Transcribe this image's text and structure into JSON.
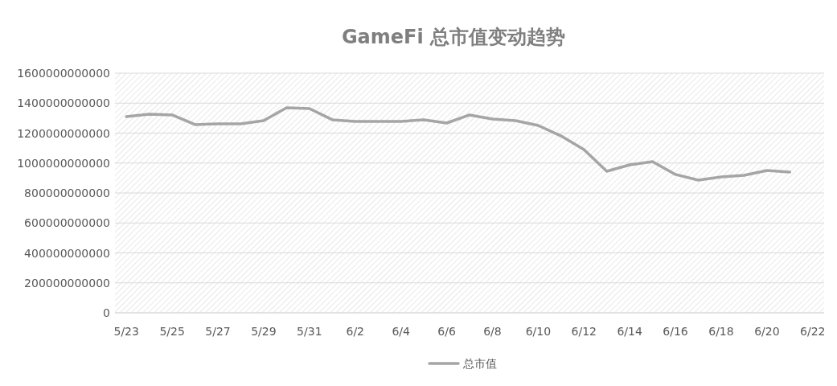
{
  "chart_data": {
    "type": "line",
    "title": "GameFi 总市值变动趋势",
    "categories": [
      "5/23",
      null,
      "5/25",
      null,
      "5/27",
      null,
      "5/29",
      null,
      "5/31",
      null,
      "6/2",
      null,
      "6/4",
      null,
      "6/6",
      null,
      "6/8",
      null,
      "6/10",
      null,
      "6/12",
      null,
      "6/14",
      null,
      "6/16",
      null,
      "6/18",
      null,
      "6/20",
      null,
      "6/22"
    ],
    "series": [
      {
        "name": "总市值",
        "color": "#a5a5a5",
        "values": [
          1310000000000,
          1326000000000,
          1321000000000,
          1257000000000,
          1262000000000,
          1262000000000,
          1283000000000,
          1369000000000,
          1364000000000,
          1289000000000,
          1278000000000,
          1278000000000,
          1278000000000,
          1289000000000,
          1267000000000,
          1321000000000,
          1294000000000,
          1283000000000,
          1251000000000,
          1181000000000,
          1090000000000,
          945000000000,
          988000000000,
          1009000000000,
          924000000000,
          886000000000,
          907000000000,
          918000000000,
          950000000000,
          940000000000,
          null
        ]
      }
    ],
    "ylim": [
      0,
      1600000000000
    ],
    "yticks": [
      0,
      200000000000,
      400000000000,
      600000000000,
      800000000000,
      1000000000000,
      1200000000000,
      1400000000000,
      1600000000000
    ],
    "grid": "y",
    "legend": "bottom",
    "marker": "none",
    "line_style": "solid"
  }
}
